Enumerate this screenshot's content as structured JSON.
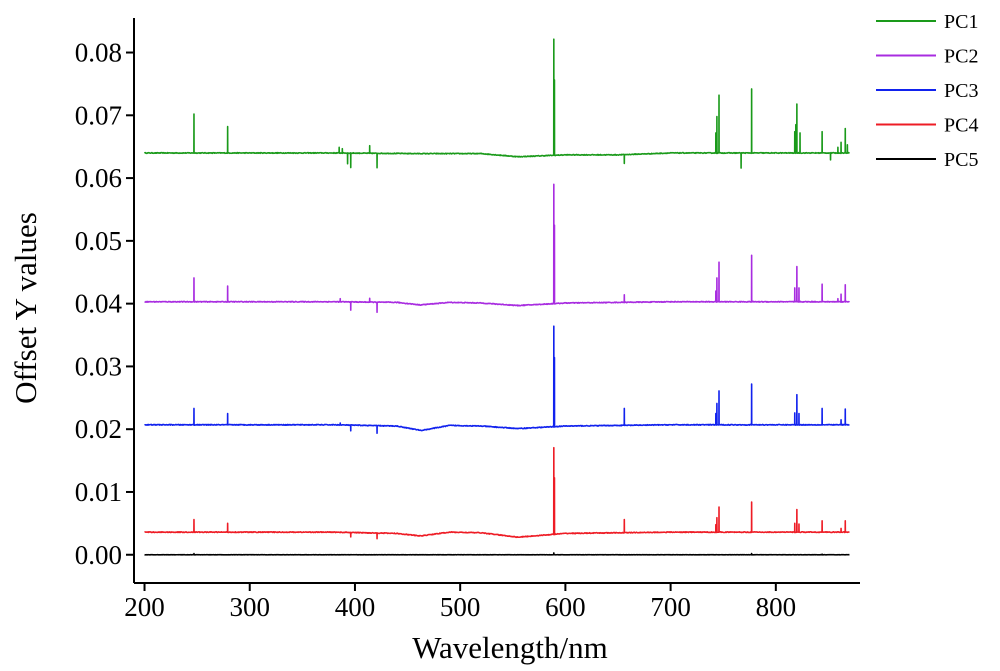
{
  "chart_data": {
    "type": "line",
    "title": "",
    "xlabel": "Wavelength/nm",
    "ylabel": "Offset Y values",
    "xlim": [
      190,
      880
    ],
    "ylim": [
      -0.0045,
      0.0855
    ],
    "x_ticks": [
      200,
      300,
      400,
      500,
      600,
      700,
      800
    ],
    "y_ticks": [
      0.0,
      0.01,
      0.02,
      0.03,
      0.04,
      0.05,
      0.06,
      0.07,
      0.08
    ],
    "x_tick_labels": [
      "200",
      "300",
      "400",
      "500",
      "600",
      "700",
      "800"
    ],
    "y_tick_labels": [
      "0.00",
      "0.01",
      "0.02",
      "0.03",
      "0.04",
      "0.05",
      "0.06",
      "0.07",
      "0.08"
    ],
    "grid": false,
    "legend_position": "top-right",
    "x_range": [
      200,
      870
    ],
    "series": [
      {
        "name": "PC1",
        "color": "#1a9a1a",
        "baseline": 0.064,
        "drift": [
          [
            200,
            0.0
          ],
          [
            380,
            0.0
          ],
          [
            460,
            -0.0001
          ],
          [
            520,
            -0.0001
          ],
          [
            555,
            -0.0006
          ],
          [
            600,
            -0.0003
          ],
          [
            650,
            -0.0003
          ],
          [
            700,
            0.0
          ],
          [
            870,
            0.0
          ]
        ],
        "peaks": [
          [
            247,
            0.0062
          ],
          [
            279,
            0.0042
          ],
          [
            385,
            0.0009
          ],
          [
            388,
            0.0007
          ],
          [
            393,
            -0.0017
          ],
          [
            396,
            -0.0023
          ],
          [
            414,
            0.0012
          ],
          [
            421,
            -0.0023
          ],
          [
            589.0,
            0.0185
          ],
          [
            589.6,
            0.012
          ],
          [
            656,
            -0.0014
          ],
          [
            743,
            0.0032
          ],
          [
            744,
            0.0058
          ],
          [
            746,
            0.0092
          ],
          [
            767,
            -0.0024
          ],
          [
            777,
            0.0102
          ],
          [
            818,
            0.0034
          ],
          [
            819,
            0.0045
          ],
          [
            820,
            0.0078
          ],
          [
            823,
            0.0032
          ],
          [
            844,
            0.0034
          ],
          [
            852,
            -0.0011
          ],
          [
            859,
            0.0009
          ],
          [
            862,
            0.0017
          ],
          [
            866,
            0.0039
          ],
          [
            868,
            0.0013
          ]
        ]
      },
      {
        "name": "PC2",
        "color": "#a82ce0",
        "baseline": 0.0403,
        "drift": [
          [
            200,
            0.0
          ],
          [
            380,
            0.0
          ],
          [
            440,
            -0.0001
          ],
          [
            462,
            -0.0005
          ],
          [
            490,
            -0.0001
          ],
          [
            520,
            -0.0002
          ],
          [
            555,
            -0.0006
          ],
          [
            600,
            -0.0002
          ],
          [
            700,
            0.0
          ],
          [
            870,
            0.0
          ]
        ],
        "peaks": [
          [
            247,
            0.0038
          ],
          [
            279,
            0.0025
          ],
          [
            386,
            0.0005
          ],
          [
            396,
            -0.0013
          ],
          [
            414,
            0.0006
          ],
          [
            421,
            -0.0016
          ],
          [
            589.0,
            0.019
          ],
          [
            589.6,
            0.0125
          ],
          [
            656,
            0.0012
          ],
          [
            743,
            0.0017
          ],
          [
            744,
            0.0038
          ],
          [
            746,
            0.0063
          ],
          [
            777,
            0.0074
          ],
          [
            818,
            0.0022
          ],
          [
            820,
            0.0056
          ],
          [
            822,
            0.0022
          ],
          [
            844,
            0.0028
          ],
          [
            859,
            0.0005
          ],
          [
            862,
            0.0012
          ],
          [
            866,
            0.0027
          ]
        ]
      },
      {
        "name": "PC3",
        "color": "#1122ee",
        "baseline": 0.0207,
        "drift": [
          [
            200,
            0.0
          ],
          [
            380,
            0.0
          ],
          [
            440,
            -0.0002
          ],
          [
            463,
            -0.0009
          ],
          [
            490,
            -0.0001
          ],
          [
            520,
            -0.0002
          ],
          [
            555,
            -0.0006
          ],
          [
            600,
            -0.0002
          ],
          [
            700,
            0.0
          ],
          [
            870,
            0.0
          ]
        ],
        "peaks": [
          [
            247,
            0.0026
          ],
          [
            279,
            0.0018
          ],
          [
            386,
            0.0003
          ],
          [
            396,
            -0.0009
          ],
          [
            421,
            -0.0012
          ],
          [
            589.0,
            0.016
          ],
          [
            589.6,
            0.011
          ],
          [
            656,
            0.0027
          ],
          [
            743,
            0.0018
          ],
          [
            744,
            0.0034
          ],
          [
            746,
            0.0054
          ],
          [
            777,
            0.0065
          ],
          [
            818,
            0.0019
          ],
          [
            820,
            0.0048
          ],
          [
            822,
            0.0018
          ],
          [
            844,
            0.0026
          ],
          [
            862,
            0.0008
          ],
          [
            866,
            0.0025
          ]
        ]
      },
      {
        "name": "PC4",
        "color": "#ee1c25",
        "baseline": 0.0036,
        "drift": [
          [
            200,
            0.0
          ],
          [
            380,
            0.0
          ],
          [
            440,
            -0.0002
          ],
          [
            462,
            -0.0006
          ],
          [
            490,
            0.0
          ],
          [
            520,
            -0.0001
          ],
          [
            555,
            -0.0008
          ],
          [
            600,
            -0.0002
          ],
          [
            700,
            0.0
          ],
          [
            870,
            0.0
          ]
        ],
        "peaks": [
          [
            247,
            0.002
          ],
          [
            279,
            0.0014
          ],
          [
            396,
            -0.0007
          ],
          [
            421,
            -0.0009
          ],
          [
            589.0,
            0.0138
          ],
          [
            589.6,
            0.009
          ],
          [
            656,
            0.0021
          ],
          [
            743,
            0.0012
          ],
          [
            744,
            0.0023
          ],
          [
            746,
            0.004
          ],
          [
            777,
            0.0048
          ],
          [
            818,
            0.0014
          ],
          [
            820,
            0.0036
          ],
          [
            822,
            0.0013
          ],
          [
            844,
            0.0018
          ],
          [
            862,
            0.0006
          ],
          [
            866,
            0.0018
          ]
        ]
      },
      {
        "name": "PC5",
        "color": "#000000",
        "baseline": 0.0,
        "drift": [
          [
            200,
            0.0
          ],
          [
            870,
            0.0
          ]
        ],
        "peaks": [
          [
            247,
            0.0002
          ],
          [
            589.0,
            0.0003
          ],
          [
            777,
            0.0002
          ],
          [
            844,
            0.0001
          ]
        ]
      }
    ]
  }
}
